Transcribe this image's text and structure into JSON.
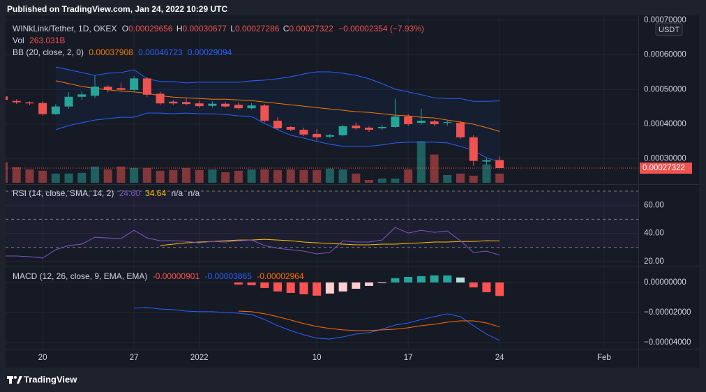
{
  "header": {
    "published": "Published on TradingView.com, Jan 24, 2022 10:29 UTC",
    "logo": "TradingView"
  },
  "chart_data": [
    {
      "type": "candlestick",
      "title": "WINkLink/Tether, 1D, OKEX",
      "ohlc_labels": [
        "O",
        "H",
        "L",
        "C"
      ],
      "change": "−0.00002354 (−7.93%)",
      "currency": "USDT",
      "colors": {
        "up": "#26a69a",
        "down": "#ef5350"
      },
      "x": [
        "2021-12-17",
        "2021-12-18",
        "2021-12-19",
        "2021-12-20",
        "2021-12-21",
        "2021-12-22",
        "2021-12-23",
        "2021-12-24",
        "2021-12-25",
        "2021-12-26",
        "2021-12-27",
        "2021-12-28",
        "2021-12-29",
        "2021-12-30",
        "2021-12-31",
        "2022-01-01",
        "2022-01-02",
        "2022-01-03",
        "2022-01-04",
        "2022-01-05",
        "2022-01-06",
        "2022-01-07",
        "2022-01-08",
        "2022-01-09",
        "2022-01-10",
        "2022-01-11",
        "2022-01-12",
        "2022-01-13",
        "2022-01-14",
        "2022-01-15",
        "2022-01-16",
        "2022-01-17",
        "2022-01-18",
        "2022-01-19",
        "2022-01-20",
        "2022-01-21",
        "2022-01-22",
        "2022-01-23",
        "2022-01-24"
      ],
      "open": [
        0.00048,
        0.000467,
        0.000463,
        0.000461,
        0.000429,
        0.000451,
        0.000479,
        0.000482,
        0.000508,
        0.000504,
        0.000499,
        0.000532,
        0.000488,
        0.000465,
        0.000464,
        0.00046,
        0.000453,
        0.000459,
        0.000456,
        0.000446,
        0.000454,
        0.00041,
        0.000392,
        0.000384,
        0.000372,
        0.000364,
        0.000368,
        0.000396,
        0.00039,
        0.000388,
        0.000392,
        0.000422,
        0.000404,
        0.000408,
        0.000404,
        0.000404,
        0.000362,
        0.000292,
        0.00029656
      ],
      "high": [
        0.00049,
        0.000472,
        0.000466,
        0.000466,
        0.000458,
        0.000492,
        0.000495,
        0.00054,
        0.000512,
        0.00052,
        0.000538,
        0.000536,
        0.000494,
        0.00047,
        0.000476,
        0.000468,
        0.000466,
        0.000464,
        0.000462,
        0.000461,
        0.000458,
        0.00042,
        0.000395,
        0.00039,
        0.000386,
        0.000372,
        0.000398,
        0.000405,
        0.000394,
        0.000398,
        0.000474,
        0.00043,
        0.000445,
        0.000412,
        0.00041,
        0.00041,
        0.000368,
        0.000302,
        0.00030677
      ],
      "low": [
        0.00046,
        0.000458,
        0.000455,
        0.000425,
        0.000427,
        0.000445,
        0.00047,
        0.000476,
        0.000492,
        0.000494,
        0.000495,
        0.000478,
        0.000455,
        0.000455,
        0.000455,
        0.000447,
        0.000448,
        0.000448,
        0.000442,
        0.000442,
        0.000405,
        0.000385,
        0.00038,
        0.000366,
        0.000352,
        0.00036,
        0.000365,
        0.000384,
        0.000378,
        0.000384,
        0.00039,
        0.000395,
        0.000398,
        0.000395,
        0.000396,
        0.000358,
        0.00028,
        0.000282,
        0.00027286
      ],
      "close": [
        0.00047,
        0.000463,
        0.00046,
        0.000429,
        0.000451,
        0.000479,
        0.000486,
        0.000508,
        0.000499,
        0.000499,
        0.000532,
        0.000485,
        0.00046,
        0.00046,
        0.000458,
        0.000452,
        0.000459,
        0.000451,
        0.000446,
        0.000454,
        0.00041,
        0.000388,
        0.000384,
        0.00037,
        0.000362,
        0.000368,
        0.000394,
        0.000388,
        0.000384,
        0.000392,
        0.000422,
        0.0004,
        0.00041,
        0.0004,
        0.000406,
        0.000362,
        0.000294,
        0.000296,
        0.00027322
      ],
      "xlim": [
        "2021-12-17",
        "2022-02-04"
      ],
      "xticks": [
        {
          "value": "2021-12-20",
          "label": "20"
        },
        {
          "value": "2021-12-27",
          "label": "27"
        },
        {
          "value": "2022-01-01",
          "label": "2022"
        },
        {
          "value": "2022-01-10",
          "label": "10"
        },
        {
          "value": "2022-01-17",
          "label": "17"
        },
        {
          "value": "2022-01-24",
          "label": "24"
        },
        {
          "value": "2022-02-01",
          "label": "Feb"
        }
      ],
      "ylim": [
        0.000231,
        0.000714
      ],
      "yticks": [
        {
          "value": 0.0007,
          "label": "0.00070000"
        },
        {
          "value": 0.0006,
          "label": "0.00060000"
        },
        {
          "value": 0.0005,
          "label": "0.00050000"
        },
        {
          "value": 0.0004,
          "label": "0.00040000"
        },
        {
          "value": 0.0003,
          "label": "0.00030000"
        }
      ],
      "volume": {
        "name": "Vol",
        "ylim": [
          0,
          1200
        ],
        "values": [
          587,
          445,
          384,
          344,
          263,
          263,
          283,
          465,
          384,
          465,
          425,
          425,
          344,
          364,
          425,
          364,
          384,
          303,
          344,
          384,
          384,
          364,
          384,
          364,
          364,
          405,
          384,
          263,
          81,
          121,
          121,
          384,
          1193,
          809,
          222,
          263,
          202,
          526,
          263.031
        ],
        "value_labels": [
          null,
          null,
          null,
          null,
          null,
          null,
          null,
          null,
          null,
          null,
          null,
          null,
          null,
          null,
          null,
          null,
          null,
          null,
          null,
          null,
          null,
          null,
          null,
          null,
          null,
          null,
          null,
          null,
          null,
          null,
          null,
          null,
          null,
          null,
          null,
          null,
          null,
          null,
          "263.031B"
        ]
      },
      "bb": {
        "name": "BB (20, close, 2, 0)",
        "fill": "#2962ff",
        "series": [
          {
            "color": "#f57c00",
            "values": [
              null,
              null,
              null,
              null,
              0.000525,
              0.000517,
              0.000509,
              0.000503,
              0.000499,
              0.000495,
              0.000493,
              0.000489,
              0.000482,
              0.000478,
              0.000476,
              0.000474,
              0.000472,
              0.000472,
              0.00047,
              0.000468,
              0.000464,
              0.00046,
              0.000456,
              0.000452,
              0.000448,
              0.000444,
              0.00044,
              0.000436,
              0.000434,
              0.00043,
              0.000426,
              0.000424,
              0.00042,
              0.000418,
              0.000412,
              0.000406,
              0.0004,
              0.00039,
              0.00037908
            ]
          },
          {
            "color": "#2962ff",
            "values": [
              null,
              null,
              null,
              null,
              0.000565,
              0.000557,
              0.000549,
              0.000541,
              0.000547,
              0.000549,
              0.000557,
              0.000531,
              0.000523,
              0.000523,
              0.000519,
              0.000521,
              0.000521,
              0.000521,
              0.000521,
              0.000525,
              0.000527,
              0.000531,
              0.000537,
              0.000545,
              0.000551,
              0.000551,
              0.000547,
              0.000541,
              0.000531,
              0.000517,
              0.000501,
              0.000493,
              0.000485,
              0.000476,
              0.000474,
              0.000474,
              0.000466,
              0.000466,
              0.00046723
            ]
          },
          {
            "color": "#2962ff",
            "values": [
              null,
              null,
              null,
              null,
              0.000384,
              0.000396,
              0.000404,
              0.000412,
              0.000416,
              0.00042,
              0.00042,
              0.000432,
              0.000432,
              0.00043,
              0.000432,
              0.00043,
              0.00043,
              0.000428,
              0.000424,
              0.000422,
              0.000402,
              0.000384,
              0.000368,
              0.00036,
              0.00035,
              0.000342,
              0.000336,
              0.000336,
              0.000336,
              0.00034,
              0.000346,
              0.000348,
              0.000348,
              0.000348,
              0.000346,
              0.000336,
              0.000324,
              0.000303,
              0.00029094
            ]
          }
        ]
      }
    },
    {
      "type": "line",
      "title": "RSI (14, close, SMA, 14, 2)",
      "na_labels": [
        "n/a",
        "n/a"
      ],
      "ylim": [
        17.5,
        72.5
      ],
      "yticks": [
        {
          "value": 60,
          "label": "60.00"
        },
        {
          "value": 40,
          "label": "40.00"
        },
        {
          "value": 20,
          "label": "20.00"
        }
      ],
      "bands": [
        70,
        50,
        30
      ],
      "band_color": "#7e57c2",
      "series": [
        {
          "color": "#7e57c2",
          "values": [
            23.95,
            23.95,
            23.46,
            22.47,
            28.4,
            31.36,
            32.35,
            37.28,
            36.79,
            36.3,
            42.22,
            36.79,
            34.81,
            34.81,
            34.32,
            33.33,
            34.32,
            33.83,
            34.81,
            35.31,
            31.36,
            29.38,
            28.4,
            27.41,
            25.43,
            26.42,
            34.81,
            33.83,
            33.83,
            35.31,
            44.2,
            40.25,
            42.22,
            40.74,
            41.73,
            34.81,
            26.42,
            27.41,
            24.6
          ],
          "value_labels": [
            null,
            null,
            null,
            null,
            null,
            null,
            null,
            null,
            null,
            null,
            null,
            null,
            null,
            null,
            null,
            null,
            null,
            null,
            null,
            null,
            null,
            null,
            null,
            null,
            null,
            null,
            null,
            null,
            null,
            null,
            null,
            null,
            null,
            null,
            null,
            null,
            null,
            null,
            "24.60"
          ]
        },
        {
          "color": "#f7c600",
          "values": [
            null,
            null,
            null,
            null,
            null,
            null,
            null,
            null,
            null,
            null,
            null,
            null,
            31.36,
            32.35,
            33.33,
            33.83,
            34.32,
            34.81,
            35.31,
            35.31,
            35.8,
            35.31,
            34.81,
            33.83,
            33.33,
            32.84,
            32.35,
            31.85,
            31.85,
            32.35,
            32.35,
            32.84,
            33.33,
            33.83,
            33.83,
            34.32,
            34.32,
            34.81,
            34.64
          ]
        }
      ]
    },
    {
      "type": "macd",
      "title": "MACD (12, 26, close, 9, EMA, EMA)",
      "ylim": [
        -4.42e-05,
        1.02e-05
      ],
      "yticks": [
        {
          "value": 0,
          "label": "0.00000000"
        },
        {
          "value": -2e-05,
          "label": "−0.00002000"
        },
        {
          "value": -4e-05,
          "label": "−0.00004000"
        }
      ],
      "histogram": {
        "colors": [
          "#26a69a",
          "#b2dfdb",
          "#ffcdd2",
          "#ff5252"
        ],
        "values": [
          null,
          null,
          null,
          null,
          null,
          null,
          null,
          null,
          null,
          null,
          null,
          null,
          null,
          null,
          null,
          null,
          null,
          null,
          -1.4e-06,
          -1.9e-06,
          -3.7e-06,
          -6e-06,
          -7e-06,
          -7.9e-06,
          -8.8e-06,
          -7.4e-06,
          -6e-06,
          -4.2e-06,
          -2.3e-06,
          -5e-07,
          2.8e-06,
          3.7e-06,
          4.2e-06,
          4.7e-06,
          4.7e-06,
          3.3e-06,
          -3.3e-06,
          -6.5e-06,
          -9.01e-06
        ]
      },
      "series": [
        {
          "color": "#2962ff",
          "values": [
            null,
            null,
            null,
            null,
            null,
            null,
            null,
            null,
            null,
            null,
            -1.72e-05,
            -1.67e-05,
            -1.77e-05,
            -1.81e-05,
            -1.91e-05,
            -1.95e-05,
            -1.95e-05,
            -2e-05,
            -2.05e-05,
            -2.14e-05,
            -2.47e-05,
            -2.88e-05,
            -3.21e-05,
            -3.49e-05,
            -3.72e-05,
            -3.77e-05,
            -3.63e-05,
            -3.44e-05,
            -3.35e-05,
            -3.12e-05,
            -2.84e-05,
            -2.7e-05,
            -2.47e-05,
            -2.28e-05,
            -2.09e-05,
            -2.28e-05,
            -2.88e-05,
            -3.44e-05,
            -3.865e-05
          ]
        },
        {
          "color": "#ff6d00",
          "values": [
            null,
            null,
            null,
            null,
            null,
            null,
            null,
            null,
            null,
            null,
            null,
            null,
            null,
            null,
            null,
            null,
            null,
            null,
            -1.91e-05,
            -1.95e-05,
            -2.09e-05,
            -2.28e-05,
            -2.51e-05,
            -2.74e-05,
            -2.93e-05,
            -3.07e-05,
            -3.16e-05,
            -3.21e-05,
            -3.21e-05,
            -3.16e-05,
            -3.12e-05,
            -3.02e-05,
            -2.88e-05,
            -2.79e-05,
            -2.65e-05,
            -2.56e-05,
            -2.56e-05,
            -2.7e-05,
            -2.964e-05
          ]
        }
      ]
    }
  ]
}
